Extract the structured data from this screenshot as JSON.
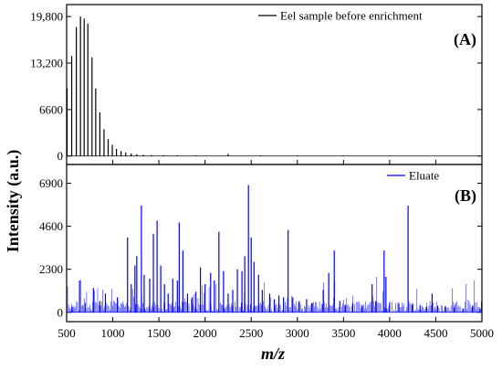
{
  "chart_data": [
    {
      "type": "line",
      "panel_label": "(A)",
      "legend": [
        "Eel sample before enrichment"
      ],
      "series": [
        {
          "name": "Eel sample before enrichment",
          "color": "#000000",
          "x": [
            505,
            555,
            605,
            650,
            690,
            730,
            775,
            815,
            860,
            905,
            950,
            995,
            1040,
            1090,
            1140,
            1200,
            1260,
            1330,
            1420,
            1550,
            1700,
            1900,
            2250,
            2600,
            3000,
            3500,
            4000
          ],
          "y": [
            9600,
            14200,
            18300,
            19800,
            19500,
            18800,
            14000,
            9600,
            6200,
            3800,
            2400,
            1600,
            1000,
            700,
            500,
            350,
            250,
            180,
            140,
            120,
            110,
            100,
            300,
            90,
            80,
            70,
            60
          ]
        }
      ],
      "xlim": [
        500,
        5000
      ],
      "ylim": [
        -1200,
        21500
      ],
      "yticks": [
        0,
        6600,
        13200,
        19800
      ],
      "ytick_labels": [
        "0",
        "6600",
        "13,200",
        "19,800"
      ],
      "grid": false
    },
    {
      "type": "line",
      "panel_label": "(B)",
      "legend": [
        "Eluate"
      ],
      "series": [
        {
          "name": "Eluate",
          "color": "#0000ff",
          "x": [
            560,
            640,
            700,
            790,
            860,
            920,
            1050,
            1160,
            1200,
            1240,
            1260,
            1310,
            1340,
            1400,
            1440,
            1480,
            1520,
            1560,
            1600,
            1650,
            1700,
            1720,
            1760,
            1810,
            1860,
            1900,
            1950,
            2000,
            2060,
            2100,
            2150,
            2200,
            2250,
            2300,
            2350,
            2400,
            2430,
            2470,
            2500,
            2530,
            2580,
            2620,
            2700,
            2750,
            2800,
            2850,
            2900,
            2950,
            3020,
            3100,
            3160,
            3280,
            3340,
            3400,
            3460,
            3520,
            3600,
            3700,
            3810,
            3850,
            3940,
            3960,
            4000,
            4100,
            4200,
            4250,
            4330,
            4400,
            4460,
            4520,
            4600,
            4700,
            4800,
            4900,
            4980
          ],
          "y": [
            300,
            1700,
            500,
            1300,
            600,
            1000,
            800,
            4000,
            1500,
            2500,
            3000,
            5700,
            2000,
            1800,
            4200,
            4900,
            2500,
            1500,
            1000,
            1800,
            1700,
            4800,
            3300,
            1000,
            800,
            1100,
            2400,
            1500,
            2100,
            1700,
            4300,
            2200,
            1000,
            1200,
            2300,
            2200,
            3000,
            6800,
            4000,
            2700,
            2000,
            1200,
            1000,
            700,
            900,
            800,
            4400,
            800,
            600,
            700,
            500,
            1200,
            2100,
            3300,
            600,
            400,
            500,
            350,
            1500,
            600,
            3300,
            1900,
            500,
            450,
            5700,
            400,
            350,
            300,
            1000,
            350,
            300,
            250,
            200,
            300,
            200
          ]
        }
      ],
      "xlim": [
        500,
        5000
      ],
      "ylim": [
        -500,
        7900
      ],
      "yticks": [
        0,
        2300,
        4600,
        6900
      ],
      "ytick_labels": [
        "0",
        "2300",
        "4600",
        "6900"
      ],
      "grid": false
    }
  ],
  "shared": {
    "xlabel": "m/z",
    "ylabel": "Intensity (a.u.)",
    "xticks": [
      500,
      1000,
      1500,
      2000,
      2500,
      3000,
      3500,
      4000,
      4500,
      5000
    ],
    "xtick_labels": [
      "500",
      "1000",
      "1500",
      "2000",
      "2500",
      "3000",
      "3500",
      "4000",
      "4500",
      "5000"
    ]
  }
}
